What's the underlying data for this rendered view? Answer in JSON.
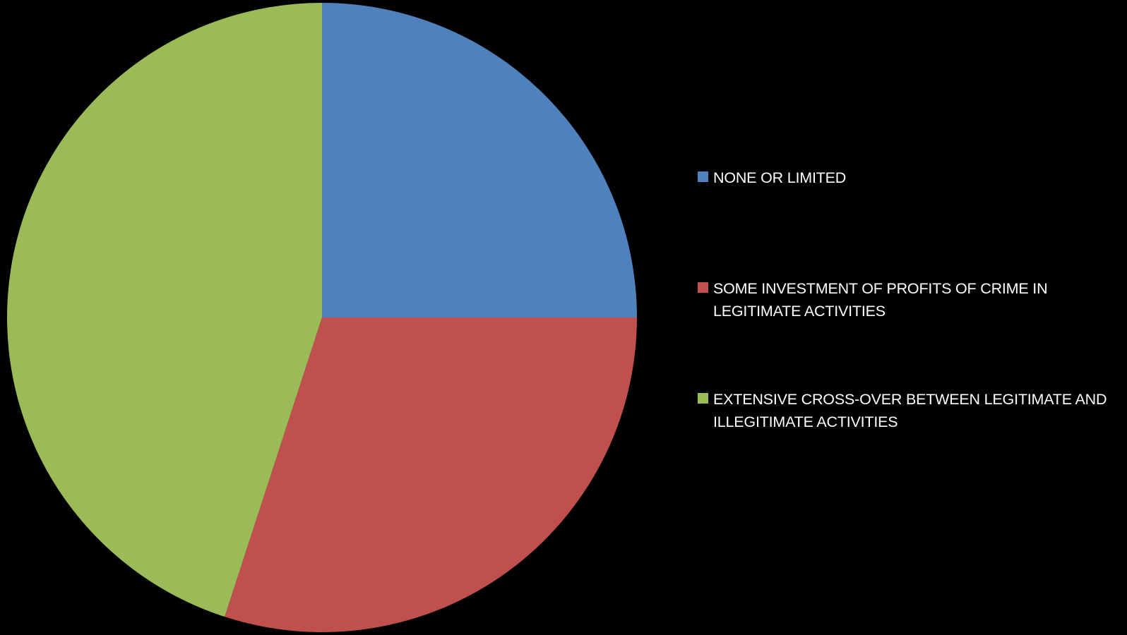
{
  "chart_data": {
    "type": "pie",
    "title": "",
    "categories": [
      "NONE OR LIMITED",
      "SOME INVESTMENT OF PROFITS OF CRIME IN LEGITIMATE ACTIVITIES",
      "EXTENSIVE CROSS-OVER BETWEEN LEGITIMATE AND ILLEGITIMATE ACTIVITIES"
    ],
    "values": [
      25,
      30,
      45
    ],
    "colors": [
      "#4F81BD",
      "#C0504D",
      "#9BBB59"
    ],
    "start_angle_deg": 0,
    "direction": "clockwise",
    "legend_position": "right"
  }
}
